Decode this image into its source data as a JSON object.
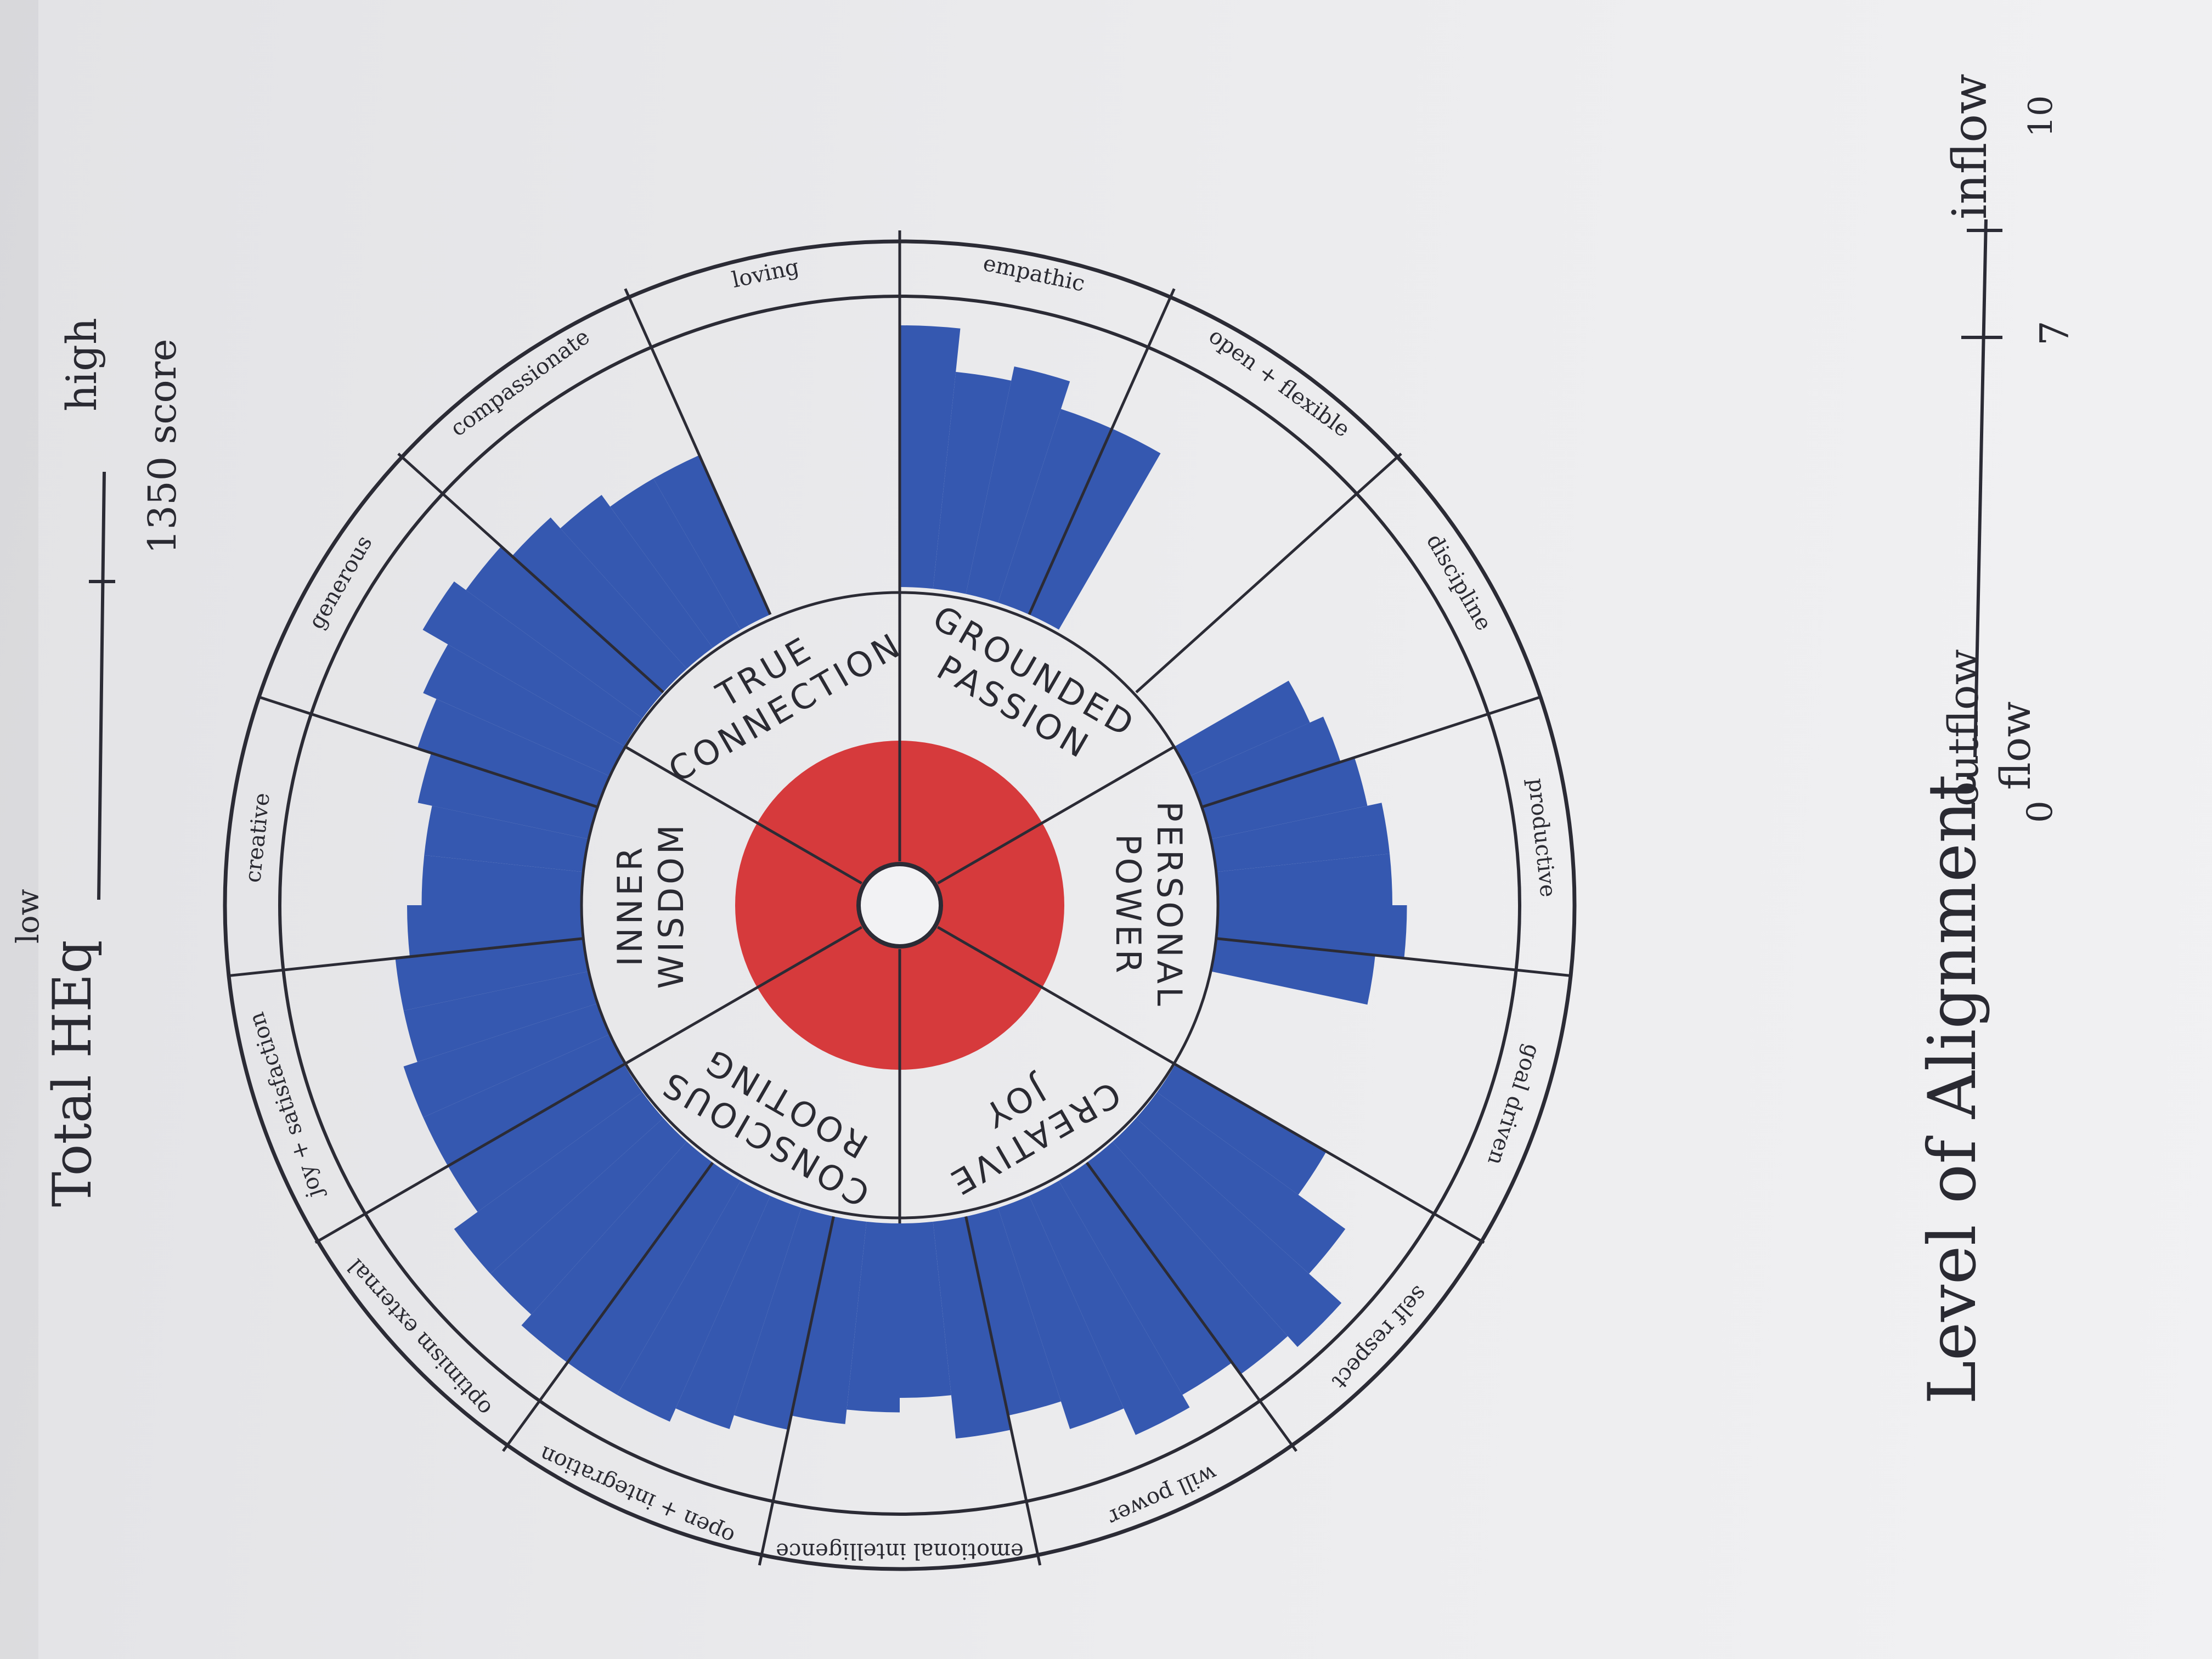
{
  "left_scale": {
    "title": "Total HEq",
    "low_label": "low",
    "high_label": "high",
    "score_label": "1350 score"
  },
  "bottom_scale": {
    "title": "Level of Alignment",
    "left_label": "outflow",
    "middle_label": "flow",
    "right_label": "inflow",
    "tick_labels": [
      "0",
      "7",
      "10"
    ]
  },
  "wheel": {
    "inner_labels": [
      {
        "line1": "GROUNDED",
        "line2": "PASSION"
      },
      {
        "line1": "PERSONAL",
        "line2": "POWER"
      },
      {
        "line1": "CREATIVE",
        "line2": "JOY"
      },
      {
        "line1": "CONSCIOUS",
        "line2": "ROOTING"
      },
      {
        "line1": "INNER",
        "line2": "WISDOM"
      },
      {
        "line1": "TRUE",
        "line2": "CONNECTION"
      }
    ],
    "outer_labels": [
      "empathic",
      "open + flexible",
      "discipline",
      "productive",
      "goal driven",
      "self respect",
      "will power",
      "emotional intelligence",
      "open + integration",
      "optimism external",
      "joy + satisfaction",
      "creative",
      "generous",
      "compassionate",
      "loving"
    ],
    "colors": {
      "outer_fill": "#3558b0",
      "core_fill": "#d63a3c",
      "ink": "#2b2b35"
    }
  },
  "chart_data": {
    "type": "radial-bar",
    "scale": {
      "min": 0,
      "max": 10
    },
    "center_score": 4.5,
    "segment_values": [
      9.0,
      7.5,
      8.0,
      7.0,
      7.0,
      0.0,
      0.0,
      0.0,
      0.0,
      0.0,
      4.5,
      5.0,
      5.5,
      6.0,
      6.0,
      6.5,
      5.5,
      0.0,
      0.0,
      0.0,
      6.0,
      8.0,
      9.5,
      9.0,
      8.5,
      9.0,
      8.0,
      7.0,
      7.5,
      6.0,
      6.5,
      7.0,
      7.5,
      8.0,
      8.5,
      8.5,
      8.5,
      8.0,
      8.0,
      7.0,
      7.0,
      7.0,
      6.5,
      6.5,
      6.0,
      5.5,
      5.5,
      6.0,
      6.5,
      7.0,
      8.0,
      7.5,
      7.0,
      6.5,
      6.0,
      6.0,
      0.0,
      0.0,
      0.0,
      0.0
    ]
  }
}
